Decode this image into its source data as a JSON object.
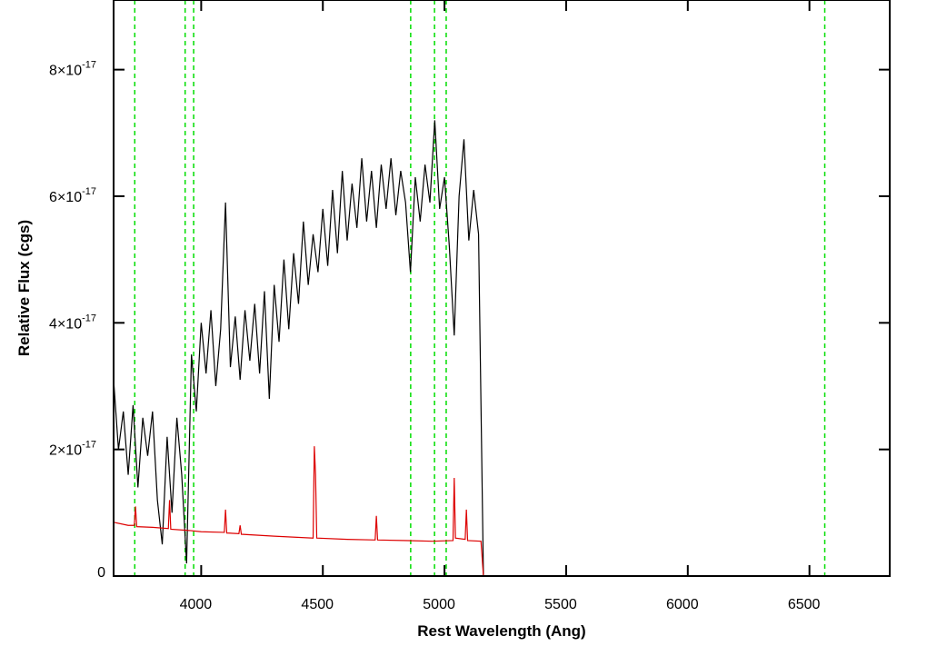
{
  "chart_data": {
    "type": "line",
    "xlabel": "Rest Wavelength (Ang)",
    "ylabel": "Relative Flux (cgs)",
    "xlim": [
      3640,
      6830
    ],
    "ylim": [
      0,
      9.1e-17
    ],
    "xticks": [
      4000,
      4500,
      5000,
      5500,
      6000,
      6500
    ],
    "yticks": [
      0,
      {
        "value": 2e-17,
        "label": "2×10",
        "label_exponent": "-17"
      },
      {
        "value": 4e-17,
        "label": "4×10",
        "label_exponent": "-17"
      },
      {
        "value": 6e-17,
        "label": "6×10",
        "label_exponent": "-17"
      },
      {
        "value": 8e-17,
        "label": "8×10",
        "label_exponent": "-17"
      }
    ],
    "vlines": [
      3727,
      3934,
      3969,
      4861,
      4959,
      5007,
      6563
    ],
    "vline_color": "#00dd00",
    "series": [
      {
        "color": "#000000",
        "x": [
          3640,
          3660,
          3680,
          3700,
          3720,
          3740,
          3760,
          3780,
          3800,
          3820,
          3840,
          3860,
          3880,
          3900,
          3920,
          3940,
          3960,
          3980,
          4000,
          4020,
          4040,
          4060,
          4080,
          4100,
          4120,
          4140,
          4160,
          4180,
          4200,
          4220,
          4240,
          4260,
          4280,
          4300,
          4320,
          4340,
          4360,
          4380,
          4400,
          4420,
          4440,
          4460,
          4480,
          4500,
          4520,
          4540,
          4560,
          4580,
          4600,
          4620,
          4640,
          4660,
          4680,
          4700,
          4720,
          4740,
          4760,
          4780,
          4800,
          4820,
          4840,
          4860,
          4880,
          4900,
          4920,
          4940,
          4960,
          4980,
          5000,
          5020,
          5040,
          5060,
          5080,
          5100,
          5120,
          5140,
          5160
        ],
        "values": [
          3.1e-17,
          2e-17,
          2.6e-17,
          1.6e-17,
          2.7e-17,
          1.4e-17,
          2.5e-17,
          1.9e-17,
          2.6e-17,
          1.2e-17,
          5e-18,
          2.2e-17,
          1e-17,
          2.5e-17,
          1.6e-17,
          2e-18,
          3.5e-17,
          2.6e-17,
          4e-17,
          3.2e-17,
          4.2e-17,
          3e-17,
          3.9e-17,
          5.9e-17,
          3.3e-17,
          4.1e-17,
          3.1e-17,
          4.2e-17,
          3.4e-17,
          4.3e-17,
          3.2e-17,
          4.5e-17,
          2.8e-17,
          4.6e-17,
          3.7e-17,
          5e-17,
          3.9e-17,
          5.1e-17,
          4.3e-17,
          5.6e-17,
          4.6e-17,
          5.4e-17,
          4.8e-17,
          5.8e-17,
          4.9e-17,
          6.1e-17,
          5.1e-17,
          6.4e-17,
          5.3e-17,
          6.2e-17,
          5.5e-17,
          6.6e-17,
          5.6e-17,
          6.4e-17,
          5.5e-17,
          6.5e-17,
          5.8e-17,
          6.6e-17,
          5.7e-17,
          6.4e-17,
          5.9e-17,
          4.8e-17,
          6.3e-17,
          5.6e-17,
          6.5e-17,
          5.9e-17,
          7.2e-17,
          5.8e-17,
          6.3e-17,
          5.2e-17,
          3.8e-17,
          6e-17,
          6.9e-17,
          5.3e-17,
          6.1e-17,
          5.4e-17,
          0
        ]
      },
      {
        "color": "#dd0000",
        "x": [
          3640,
          3700,
          3725,
          3730,
          3735,
          3800,
          3865,
          3870,
          3875,
          3950,
          4000,
          4095,
          4100,
          4105,
          4155,
          4160,
          4165,
          4300,
          4460,
          4465,
          4470,
          4475,
          4600,
          4715,
          4720,
          4725,
          4850,
          4950,
          5035,
          5040,
          5045,
          5085,
          5090,
          5095,
          5150,
          5160,
          6830
        ],
        "values": [
          8.5e-18,
          8e-18,
          8e-18,
          1.1e-17,
          7.8e-18,
          7.7e-18,
          7.5e-18,
          1.2e-17,
          7.4e-18,
          7.2e-18,
          7e-18,
          6.9e-18,
          1.05e-17,
          6.8e-18,
          6.7e-18,
          8e-18,
          6.6e-18,
          6.3e-18,
          6e-18,
          2.05e-17,
          1.6e-17,
          6e-18,
          5.8e-18,
          5.7e-18,
          9.5e-18,
          5.7e-18,
          5.6e-18,
          5.5e-18,
          5.6e-18,
          1.55e-17,
          6e-18,
          5.8e-18,
          1.05e-17,
          5.6e-18,
          5.5e-18,
          0,
          0
        ]
      }
    ]
  }
}
